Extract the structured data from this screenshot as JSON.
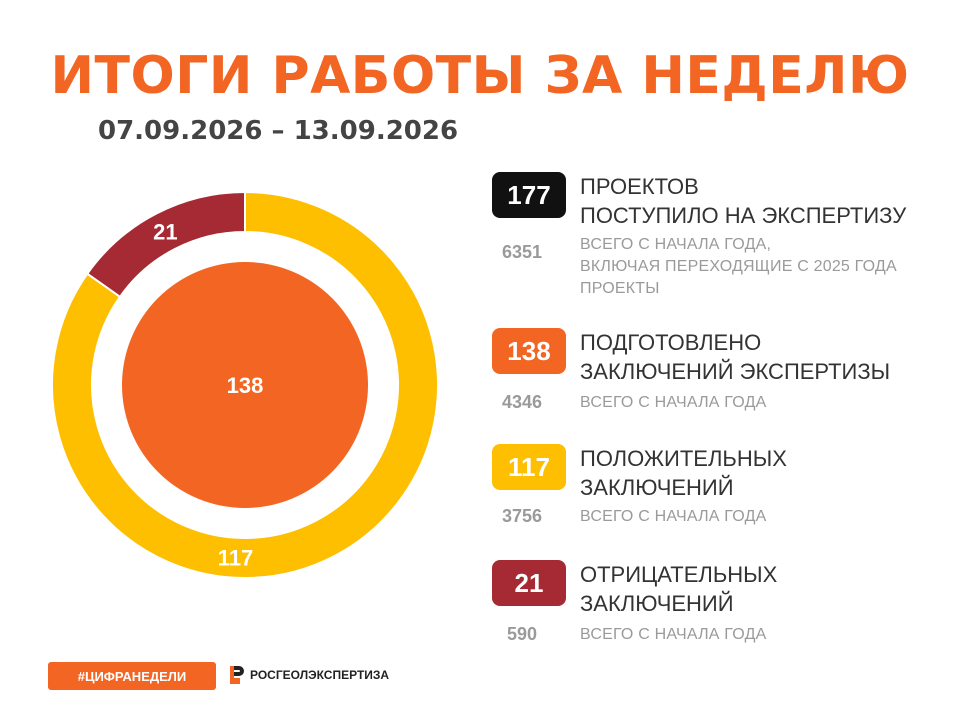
{
  "header": {
    "title": "ИТОГИ РАБОТЫ ЗА НЕДЕЛЮ",
    "period": "07.09.2026 – 13.09.2026"
  },
  "colors": {
    "accent": "#f26522",
    "text_dark": "#444444",
    "black": "#111111",
    "orange": "#f26522",
    "yellow": "#fdbf00",
    "maroon": "#a52a33",
    "gray": "#9a9a9a"
  },
  "stats": [
    {
      "value": "177",
      "label": "ПРОЕКТОВ\nПОСТУПИЛО НА ЭКСПЕРТИЗУ",
      "total": "6351",
      "total_note": "ВСЕГО С НАЧАЛА ГОДА,\nВКЛЮЧАЯ ПЕРЕХОДЯЩИЕ С 2025 ГОДА\nПРОЕКТЫ"
    },
    {
      "value": "138",
      "label": "ПОДГОТОВЛЕНО\nЗАКЛЮЧЕНИЙ ЭКСПЕРТИЗЫ",
      "total": "4346",
      "total_note": "ВСЕГО С НАЧАЛА ГОДА"
    },
    {
      "value": "117",
      "label": "ПОЛОЖИТЕЛЬНЫХ\nЗАКЛЮЧЕНИЙ",
      "total": "3756",
      "total_note": "ВСЕГО С НАЧАЛА ГОДА"
    },
    {
      "value": "21",
      "label": "ОТРИЦАТЕЛЬНЫХ\nЗАКЛЮЧЕНИЙ",
      "total": "590",
      "total_note": "ВСЕГО С НАЧАЛА ГОДА"
    }
  ],
  "chart_data": {
    "type": "pie",
    "inner": {
      "label": "138",
      "value": 138
    },
    "outer_ring": [
      {
        "label": "117",
        "value": 117
      },
      {
        "label": "21",
        "value": 21
      }
    ]
  },
  "footer": {
    "hashtag": "#ЦИФРАНЕДЕЛИ",
    "brand": "РОСГЕОЛЭКСПЕРТИЗА",
    "brand_icon": "rosgeolexpertiza-logo-icon"
  }
}
